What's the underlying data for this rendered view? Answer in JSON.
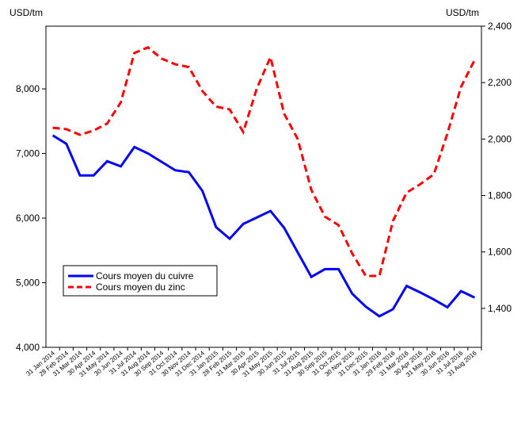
{
  "chart_data": {
    "type": "line",
    "y_label": "USD/tm",
    "y2_label": "USD/tm",
    "categories": [
      "31 Jan 2014",
      "28 Feb 2014",
      "31 Mar 2014",
      "30 Apr 2014",
      "31 May 2014",
      "30 Jun 2014",
      "31 Jul 2014",
      "31 Aug 2014",
      "30 Sep 2014",
      "31 Oct 2014",
      "30 Nov 2014",
      "31 Dec 2014",
      "31 Jan 2015",
      "28 Feb 2015",
      "31 Mar 2015",
      "30 Apr 2015",
      "31 May 2015",
      "30 Jun 2015",
      "31 Jul 2015",
      "31 Aug 2015",
      "30 Sep 2015",
      "31 Oct 2015",
      "30 Nov 2015",
      "31 Dec 2015",
      "31 Jan 2016",
      "29 Feb 2016",
      "31 Mar 2016",
      "30 Apr 2016",
      "31 May 2016",
      "30 Jun 2016",
      "31 Jul 2016",
      "31 Aug 2016"
    ],
    "series": [
      {
        "name": "Cours moyen du cuivre",
        "color": "#0000ff",
        "dashed": false,
        "values": [
          7280,
          7150,
          6660,
          6660,
          6880,
          6800,
          7100,
          7000,
          6870,
          6740,
          6710,
          6420,
          5860,
          5680,
          5910,
          6010,
          6110,
          5850,
          5470,
          5090,
          5210,
          5210,
          4830,
          4630,
          4480,
          4590,
          4950,
          4850,
          4740,
          4620,
          4870,
          4770
        ]
      },
      {
        "name": "Cours moyen du zinc",
        "color": "#ff0000",
        "dashed": true,
        "axis": "y2",
        "values": [
          2040,
          2035,
          2015,
          2030,
          2055,
          2130,
          2305,
          2325,
          2285,
          2265,
          2255,
          2170,
          2115,
          2105,
          2025,
          2180,
          2290,
          2090,
          2000,
          1820,
          1725,
          1695,
          1595,
          1515,
          1515,
          1710,
          1810,
          1840,
          1875,
          2020,
          2185,
          2280
        ]
      }
    ],
    "ylim": [
      4000,
      8970
    ],
    "yticks": [
      {
        "value": 4000,
        "label": "4,000"
      },
      {
        "value": 5000,
        "label": "5,000"
      },
      {
        "value": 6000,
        "label": "6,000"
      },
      {
        "value": 7000,
        "label": "7,000"
      },
      {
        "value": 8000,
        "label": "8,000"
      }
    ],
    "y2lim": [
      1262,
      2400
    ],
    "y2ticks": [
      {
        "value": 1400,
        "label": "1,400"
      },
      {
        "value": 1600,
        "label": "1,600"
      },
      {
        "value": 1800,
        "label": "1,800"
      },
      {
        "value": 2000,
        "label": "2,000"
      },
      {
        "value": 2200,
        "label": "2,200"
      },
      {
        "value": 2400,
        "label": "2,400"
      }
    ],
    "grid": false
  }
}
